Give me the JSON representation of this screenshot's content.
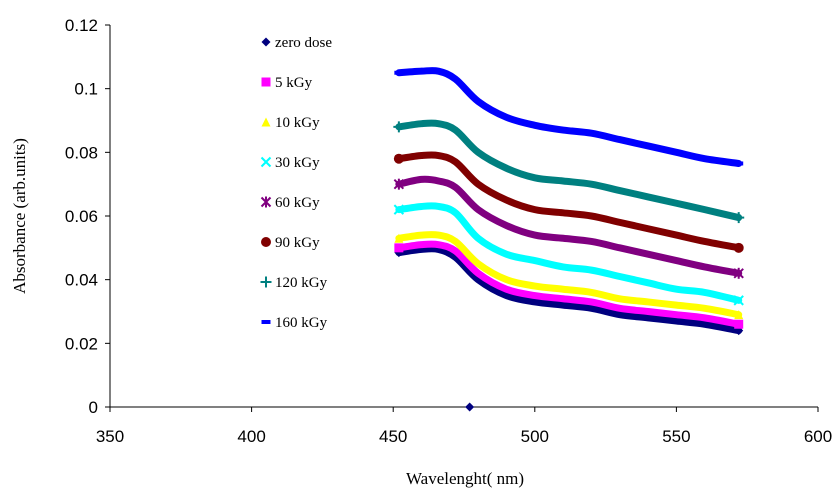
{
  "chart_data": {
    "type": "line",
    "title": "",
    "xlabel": "Wavelenght( nm)",
    "ylabel": "Absorbance (arb.units)",
    "xlim": [
      350,
      600
    ],
    "ylim": [
      0,
      0.12
    ],
    "x_ticks": [
      "350",
      "400",
      "450",
      "500",
      "550",
      "600"
    ],
    "y_ticks": [
      "0",
      "0.02",
      "0.04",
      "0.06",
      "0.08",
      "0.1",
      "0.12"
    ],
    "grid": false,
    "legend_position": "top-left",
    "x": [
      452,
      460,
      466,
      472,
      480,
      490,
      500,
      510,
      520,
      530,
      540,
      550,
      560,
      572
    ],
    "series": [
      {
        "name": "zero dose",
        "color": "#00007f",
        "marker": "diamond",
        "values": [
          0.0485,
          0.0495,
          0.0495,
          0.047,
          0.04,
          0.035,
          0.033,
          0.032,
          0.031,
          0.029,
          0.028,
          0.027,
          0.026,
          0.024
        ],
        "extra_point": [
          477,
          0
        ]
      },
      {
        "name": "5 kGy",
        "color": "#ff00ff",
        "marker": "square",
        "values": [
          0.05,
          0.051,
          0.051,
          0.049,
          0.042,
          0.037,
          0.035,
          0.034,
          0.033,
          0.031,
          0.03,
          0.029,
          0.028,
          0.026
        ]
      },
      {
        "name": "10 kGy",
        "color": "#ffff00",
        "marker": "triangle",
        "values": [
          0.053,
          0.054,
          0.054,
          0.052,
          0.045,
          0.04,
          0.038,
          0.037,
          0.036,
          0.034,
          0.033,
          0.032,
          0.031,
          0.029
        ]
      },
      {
        "name": "30 kGy",
        "color": "#00ffff",
        "marker": "x",
        "values": [
          0.062,
          0.063,
          0.063,
          0.061,
          0.053,
          0.048,
          0.046,
          0.044,
          0.043,
          0.041,
          0.039,
          0.037,
          0.036,
          0.0335
        ]
      },
      {
        "name": "60 kGy",
        "color": "#800080",
        "marker": "star",
        "values": [
          0.07,
          0.0715,
          0.071,
          0.069,
          0.062,
          0.057,
          0.054,
          0.053,
          0.052,
          0.05,
          0.048,
          0.046,
          0.044,
          0.042
        ]
      },
      {
        "name": "90 kGy",
        "color": "#800000",
        "marker": "circle",
        "values": [
          0.078,
          0.079,
          0.079,
          0.077,
          0.07,
          0.065,
          0.062,
          0.061,
          0.06,
          0.058,
          0.056,
          0.054,
          0.052,
          0.05
        ]
      },
      {
        "name": "120 kGy",
        "color": "#008080",
        "marker": "plus",
        "values": [
          0.088,
          0.089,
          0.089,
          0.087,
          0.08,
          0.075,
          0.072,
          0.071,
          0.07,
          0.068,
          0.066,
          0.064,
          0.062,
          0.0595
        ]
      },
      {
        "name": "160 kGy",
        "color": "#0000ff",
        "marker": "dash",
        "values": [
          0.105,
          0.1055,
          0.1055,
          0.103,
          0.096,
          0.091,
          0.0885,
          0.087,
          0.086,
          0.084,
          0.082,
          0.08,
          0.078,
          0.0765
        ]
      }
    ]
  }
}
